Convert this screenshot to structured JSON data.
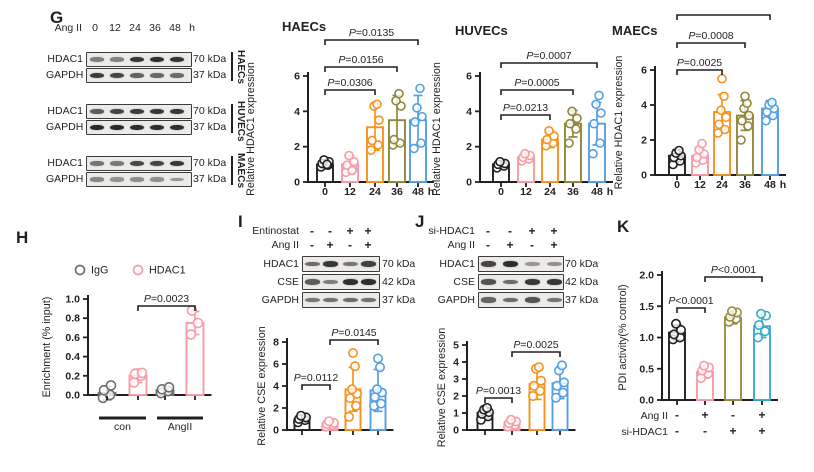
{
  "panels": {
    "G": {
      "label": "G",
      "treatment_row": {
        "label": "Ang II",
        "lanes": [
          "0",
          "12",
          "24",
          "36",
          "48"
        ],
        "unit": "h"
      },
      "groups": [
        {
          "cell": "HAECs",
          "rows": [
            {
              "protein": "HDAC1",
              "kda": "70 kDa",
              "bands": [
                0.45,
                0.42,
                0.88,
                0.92,
                0.9
              ]
            },
            {
              "protein": "GAPDH",
              "kda": "37 kDa",
              "bands": [
                0.85,
                0.8,
                0.62,
                0.58,
                0.55
              ]
            }
          ]
        },
        {
          "cell": "HUVECs",
          "rows": [
            {
              "protein": "HDAC1",
              "kda": "70 kDa",
              "bands": [
                0.65,
                0.8,
                0.85,
                0.88,
                0.88
              ]
            },
            {
              "protein": "GAPDH",
              "kda": "37 kDa",
              "bands": [
                0.97,
                0.97,
                0.95,
                0.95,
                0.93
              ]
            }
          ]
        },
        {
          "cell": "MAECs",
          "rows": [
            {
              "protein": "HDAC1",
              "kda": "70 kDa",
              "bands": [
                0.5,
                0.48,
                0.78,
                0.8,
                0.88
              ]
            },
            {
              "protein": "GAPDH",
              "kda": "37 kDa",
              "bands": [
                0.4,
                0.32,
                0.35,
                0.33,
                0.3
              ]
            }
          ]
        }
      ]
    },
    "H": {
      "label": "H"
    },
    "I": {
      "label": "I",
      "treatment_rows": [
        {
          "label": "Entinostat",
          "values": [
            "-",
            "-",
            "+",
            "+"
          ]
        },
        {
          "label": "Ang II",
          "values": [
            "-",
            "+",
            "-",
            "+"
          ]
        }
      ],
      "blot_rows": [
        {
          "protein": "HDAC1",
          "kda": "70 kDa",
          "bands": [
            0.55,
            0.88,
            0.5,
            0.82
          ]
        },
        {
          "protein": "CSE",
          "kda": "42 kDa",
          "bands": [
            0.65,
            0.45,
            0.92,
            0.95
          ]
        },
        {
          "protein": "GAPDH",
          "kda": "37 kDa",
          "bands": [
            0.5,
            0.52,
            0.55,
            0.52
          ]
        }
      ]
    },
    "J": {
      "label": "J",
      "treatment_rows": [
        {
          "label": "si-HDAC1",
          "values": [
            "-",
            "-",
            "+",
            "+"
          ]
        },
        {
          "label": "Ang II",
          "values": [
            "-",
            "+",
            "-",
            "+"
          ]
        }
      ],
      "blot_rows": [
        {
          "protein": "HDAC1",
          "kda": "70 kDa",
          "bands": [
            0.8,
            0.95,
            0.3,
            0.33
          ]
        },
        {
          "protein": "CSE",
          "kda": "42 kDa",
          "bands": [
            0.72,
            0.55,
            0.88,
            0.9
          ]
        },
        {
          "protein": "GAPDH",
          "kda": "37 kDa",
          "bands": [
            0.6,
            0.55,
            0.7,
            0.5
          ]
        }
      ]
    },
    "K": {
      "label": "K"
    }
  },
  "colors": {
    "black": "#231f20",
    "pink": "#f89ca6",
    "orange": "#f6921e",
    "olive": "#8f883c",
    "blue": "#55a0e4",
    "teal": "#3aabcb",
    "gray": "#6d6e71"
  },
  "chart_data": [
    {
      "id": "haecs",
      "type": "bar",
      "title": "HAECs",
      "ylabel": "Relative HDAC1 expression",
      "categories": [
        "0",
        "12",
        "24",
        "36",
        "48"
      ],
      "x_unit": "h",
      "values": [
        1.0,
        1.0,
        3.1,
        3.5,
        3.5
      ],
      "errors": [
        0.25,
        0.5,
        1.3,
        1.4,
        1.4
      ],
      "dots": [
        [
          0.85,
          0.95,
          1.05,
          1.15,
          1.25,
          1.0
        ],
        [
          0.55,
          0.75,
          0.95,
          1.15,
          1.5,
          0.65
        ],
        [
          1.8,
          2.1,
          2.35,
          3.5,
          4.3,
          4.4
        ],
        [
          2.1,
          2.2,
          2.4,
          4.3,
          4.6,
          5.0
        ],
        [
          1.9,
          2.2,
          3.4,
          3.7,
          4.2,
          5.3
        ]
      ],
      "colors": [
        "#231f20",
        "#f89ca6",
        "#f6921e",
        "#8f883c",
        "#55a0e4"
      ],
      "ylim": [
        0,
        6
      ],
      "yticks": [
        0,
        2,
        4,
        6
      ],
      "ytick_labels": [
        "0",
        "2",
        "4",
        "6"
      ],
      "brackets": [
        {
          "from": 0,
          "to": 2,
          "label": "P=0.0306"
        },
        {
          "from": 0,
          "to": 3,
          "label": "P=0.0156"
        },
        {
          "from": 0,
          "to": 4,
          "label": "P=0.0135"
        }
      ]
    },
    {
      "id": "huvecs",
      "type": "bar",
      "title": "HUVECs",
      "ylabel": "Relative HDAC1 expression",
      "categories": [
        "0",
        "12",
        "24",
        "36",
        "48"
      ],
      "x_unit": "h",
      "values": [
        1.0,
        1.4,
        2.4,
        3.3,
        3.3
      ],
      "errors": [
        0.2,
        0.25,
        0.45,
        0.75,
        1.2
      ],
      "dots": [
        [
          0.8,
          0.9,
          1.0,
          1.05,
          1.15
        ],
        [
          1.2,
          1.3,
          1.4,
          1.5,
          1.6
        ],
        [
          2.05,
          2.2,
          2.4,
          2.6,
          2.9
        ],
        [
          2.2,
          3.0,
          3.3,
          3.6,
          4.0
        ],
        [
          1.6,
          2.2,
          3.3,
          3.9,
          4.4,
          4.9
        ]
      ],
      "colors": [
        "#231f20",
        "#f89ca6",
        "#f6921e",
        "#8f883c",
        "#55a0e4"
      ],
      "ylim": [
        0,
        6
      ],
      "yticks": [
        0,
        2,
        4,
        6
      ],
      "ytick_labels": [
        "0",
        "2",
        "4",
        "6"
      ],
      "brackets": [
        {
          "from": 0,
          "to": 2,
          "label": "P=0.0213"
        },
        {
          "from": 0,
          "to": 3,
          "label": "P=0.0005"
        },
        {
          "from": 0,
          "to": 4,
          "label": "P=0.0007"
        }
      ]
    },
    {
      "id": "maecs",
      "type": "bar",
      "title": "MAECs",
      "ylabel": "Relative HDAC1 expression",
      "categories": [
        "0",
        "12",
        "24",
        "36",
        "48"
      ],
      "x_unit": "h",
      "values": [
        1.1,
        1.1,
        3.6,
        3.4,
        3.8
      ],
      "errors": [
        0.35,
        0.45,
        1.0,
        0.85,
        0.45
      ],
      "dots": [
        [
          0.6,
          0.8,
          1.0,
          1.1,
          1.25,
          1.4
        ],
        [
          0.7,
          0.85,
          1.0,
          1.2,
          1.45,
          1.8
        ],
        [
          2.4,
          2.6,
          2.9,
          3.3,
          3.7,
          4.5,
          5.5
        ],
        [
          2.0,
          2.8,
          3.1,
          3.4,
          3.8,
          4.1,
          4.5
        ],
        [
          3.1,
          3.4,
          3.6,
          3.8,
          4.0,
          4.15
        ]
      ],
      "colors": [
        "#231f20",
        "#f89ca6",
        "#f6921e",
        "#8f883c",
        "#55a0e4"
      ],
      "ylim": [
        0,
        6
      ],
      "yticks": [
        0,
        2,
        4,
        6
      ],
      "ytick_labels": [
        "0",
        "2",
        "4",
        "6"
      ],
      "brackets": [
        {
          "from": 0,
          "to": 2,
          "label": "P=0.0025"
        },
        {
          "from": 0,
          "to": 3,
          "label": "P=0.0008"
        },
        {
          "from": 0,
          "to": 4,
          "label": ""
        }
      ]
    },
    {
      "id": "chip",
      "type": "bar",
      "ylabel": "Enrichment (% input)",
      "values": [
        0.02,
        0.2,
        0.05,
        0.75
      ],
      "errors": [
        0.07,
        0.07,
        0.04,
        0.12
      ],
      "dots": [
        [
          -0.03,
          0.0,
          0.05,
          0.1
        ],
        [
          0.13,
          0.2,
          0.22,
          0.23
        ],
        [
          0.02,
          0.04,
          0.06,
          0.08
        ],
        [
          0.63,
          0.75,
          0.88
        ]
      ],
      "colors": [
        "#6d6e71",
        "#f89ca6",
        "#6d6e71",
        "#f89ca6"
      ],
      "ylim": [
        0,
        1
      ],
      "yticks": [
        0,
        0.2,
        0.4,
        0.6,
        0.8,
        1.0
      ],
      "ytick_labels": [
        "0.0",
        "0.2",
        "0.4",
        "0.6",
        "0.8",
        "1.0"
      ],
      "brackets": [
        {
          "from": 1,
          "to": 3,
          "label": "P=0.0023"
        }
      ],
      "legend": [
        {
          "label": "IgG",
          "color": "#6d6e71"
        },
        {
          "label": "HDAC1",
          "color": "#f89ca6"
        }
      ],
      "group_labels": [
        "con",
        "AngII"
      ]
    },
    {
      "id": "cseent",
      "type": "bar",
      "ylabel": "Relative CSE expression",
      "values": [
        1.0,
        0.6,
        3.7,
        3.6
      ],
      "errors": [
        0.3,
        0.25,
        2.0,
        1.9
      ],
      "dots": [
        [
          0.7,
          0.9,
          1.0,
          1.15,
          1.3
        ],
        [
          0.3,
          0.45,
          0.55,
          0.65,
          0.8
        ],
        [
          1.2,
          2.2,
          2.9,
          3.3,
          3.7,
          5.8,
          7.0
        ],
        [
          2.2,
          2.4,
          3.0,
          3.4,
          3.7,
          5.7,
          6.5
        ]
      ],
      "colors": [
        "#231f20",
        "#f89ca6",
        "#f6921e",
        "#55a0e4"
      ],
      "ylim": [
        0,
        8
      ],
      "yticks": [
        0,
        2,
        4,
        6,
        8
      ],
      "ytick_labels": [
        "0",
        "2",
        "4",
        "6",
        "8"
      ],
      "brackets": [
        {
          "from": 0,
          "to": 1,
          "label": "P=0.0112"
        },
        {
          "from": 1,
          "to": 3,
          "label": "P=0.0145"
        }
      ]
    },
    {
      "id": "csesi",
      "type": "bar",
      "ylabel": "Relative CSE expression",
      "values": [
        1.0,
        0.45,
        2.7,
        2.75
      ],
      "errors": [
        0.3,
        0.2,
        0.9,
        0.9
      ],
      "dots": [
        [
          0.6,
          0.8,
          0.95,
          1.05,
          1.2,
          1.3
        ],
        [
          0.2,
          0.3,
          0.4,
          0.5,
          0.6
        ],
        [
          2.0,
          2.3,
          2.6,
          2.9,
          3.6,
          3.7
        ],
        [
          1.9,
          2.2,
          2.6,
          2.8,
          3.5,
          3.8
        ]
      ],
      "colors": [
        "#231f20",
        "#f89ca6",
        "#f6921e",
        "#55a0e4"
      ],
      "ylim": [
        0,
        5
      ],
      "yticks": [
        0,
        1,
        2,
        3,
        4,
        5
      ],
      "ytick_labels": [
        "0",
        "1",
        "2",
        "3",
        "4",
        "5"
      ],
      "brackets": [
        {
          "from": 0,
          "to": 1,
          "label": "P=0.0013"
        },
        {
          "from": 1,
          "to": 3,
          "label": "P=0.0025"
        }
      ]
    },
    {
      "id": "pdi",
      "type": "bar",
      "ylabel": "PDI activity(% control)",
      "values": [
        1.08,
        0.45,
        1.32,
        1.18
      ],
      "errors": [
        0.12,
        0.1,
        0.1,
        0.18
      ],
      "dots": [
        [
          0.97,
          1.0,
          1.05,
          1.12,
          1.22
        ],
        [
          0.35,
          0.42,
          0.47,
          0.52,
          0.55
        ],
        [
          1.25,
          1.3,
          1.33,
          1.4,
          1.42
        ],
        [
          1.0,
          1.1,
          1.2,
          1.35,
          1.38
        ]
      ],
      "colors": [
        "#231f20",
        "#f89ca6",
        "#9a8c3f",
        "#3aabcb"
      ],
      "ylim": [
        0,
        2
      ],
      "yticks": [
        0,
        0.5,
        1,
        1.5,
        2
      ],
      "ytick_labels": [
        "0.0",
        "0.5",
        "1.0",
        "1.5",
        "2.0"
      ],
      "brackets": [
        {
          "from": 0,
          "to": 1,
          "label": "P<0.0001"
        },
        {
          "from": 1,
          "to": 3,
          "label": "P<0.0001"
        }
      ],
      "x_matrix": [
        {
          "label": "Ang II",
          "values": [
            "-",
            "+",
            "-",
            "+"
          ]
        },
        {
          "label": "si-HDAC1",
          "values": [
            "-",
            "-",
            "+",
            "+"
          ]
        }
      ]
    }
  ]
}
